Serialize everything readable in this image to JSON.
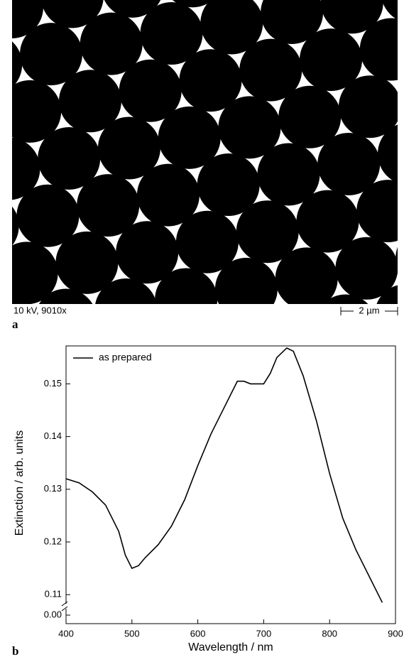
{
  "panel_a": {
    "label": "a",
    "caption": "10 kV, 9010x",
    "scale_bar": "2 µm"
  },
  "panel_b": {
    "label": "b"
  },
  "chart_data": {
    "type": "line",
    "x_label": "Wavelength / nm",
    "y_label": "Extinction / arb. units",
    "xlim": [
      400,
      900
    ],
    "xticks": [
      400,
      500,
      600,
      700,
      800,
      900
    ],
    "ylim": [
      0.1045,
      0.1572
    ],
    "yticks": [
      0.11,
      0.12,
      0.13,
      0.14,
      0.15
    ],
    "y_break_ticks": [
      {
        "value": 0,
        "label": "0.00"
      }
    ],
    "legend": "top-left",
    "x": [
      400,
      420,
      440,
      460,
      480,
      490,
      500,
      510,
      520,
      540,
      560,
      580,
      600,
      620,
      640,
      660,
      670,
      680,
      690,
      700,
      710,
      720,
      735,
      745,
      760,
      780,
      800,
      820,
      840,
      860,
      880
    ],
    "series": [
      {
        "name": "as prepared",
        "color": "#000000",
        "values": [
          0.132,
          0.1312,
          0.1295,
          0.127,
          0.122,
          0.1175,
          0.115,
          0.1155,
          0.117,
          0.1195,
          0.123,
          0.128,
          0.1345,
          0.1405,
          0.1455,
          0.1505,
          0.1505,
          0.15,
          0.15,
          0.15,
          0.152,
          0.155,
          0.1568,
          0.1562,
          0.1515,
          0.143,
          0.133,
          0.1245,
          0.1185,
          0.1135,
          0.1085
        ]
      }
    ]
  }
}
